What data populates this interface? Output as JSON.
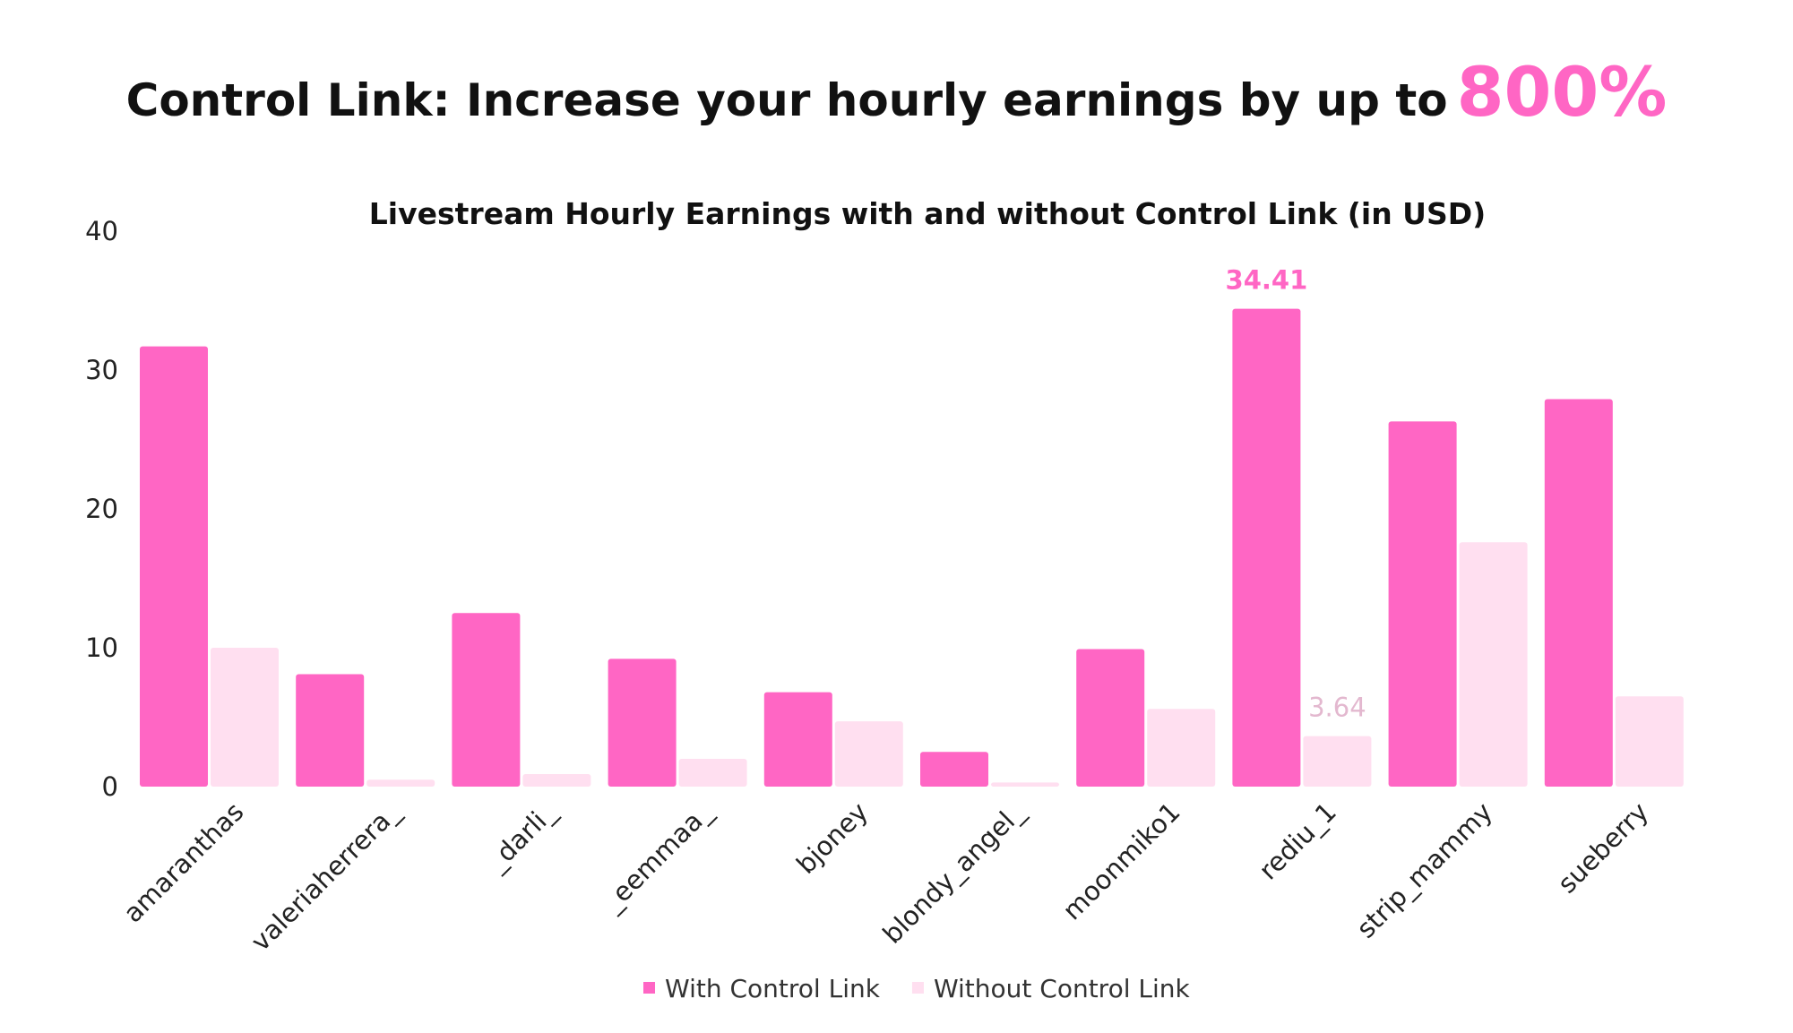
{
  "headline": {
    "text": "Control Link: Increase your hourly earnings by up to",
    "highlight": "800%"
  },
  "colors": {
    "accent": "#ff66c4",
    "light": "#ffdff0",
    "highlight_text": "#ff66c4",
    "secondary_label": "#e3b8cf"
  },
  "chart_data": {
    "type": "bar",
    "title": "Livestream Hourly Earnings with and without Control Link (in USD)",
    "xlabel": "",
    "ylabel": "",
    "ylim": [
      0,
      40
    ],
    "yticks": [
      0,
      10,
      20,
      30,
      40
    ],
    "grid": false,
    "legend_position": "bottom",
    "categories": [
      "amaranthas",
      "valeriaherrera_",
      "_darli_",
      "_eemmaa_",
      "bjoney",
      "blondy_angel_",
      "moonmiko1",
      "rediu_1",
      "strip_mammy",
      "sueberry"
    ],
    "series": [
      {
        "name": "With Control Link",
        "color": "#ff66c4",
        "values": [
          31.7,
          8.1,
          12.5,
          9.2,
          6.8,
          2.5,
          9.9,
          34.41,
          26.3,
          27.9
        ]
      },
      {
        "name": "Without Control Link",
        "color": "#ffdff0",
        "values": [
          10.0,
          0.5,
          0.9,
          2.0,
          4.7,
          0.3,
          5.6,
          3.64,
          17.6,
          6.5
        ]
      }
    ],
    "annotations": [
      {
        "text": "34.41",
        "category": "rediu_1",
        "series": 0,
        "value": 34.41,
        "color": "#ff66c4",
        "bold": true
      },
      {
        "text": "3.64",
        "category": "rediu_1",
        "series": 1,
        "value": 3.64,
        "color": "#e3b8cf",
        "bold": false
      }
    ]
  }
}
